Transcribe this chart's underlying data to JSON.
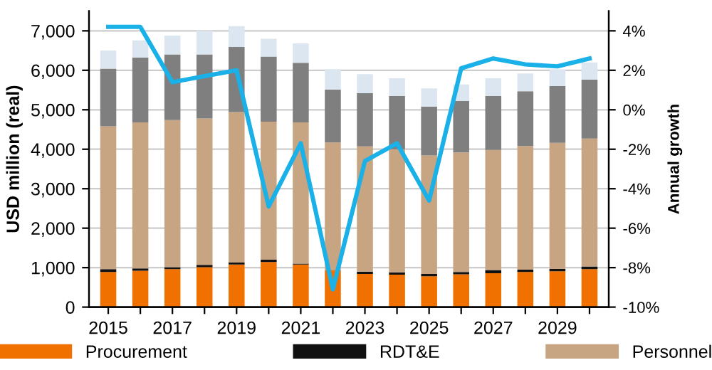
{
  "chart_data": {
    "type": "bar",
    "stacked": true,
    "ylabel": "USD million (real)",
    "y2label": "Annual growth",
    "categories": [
      "2015",
      null,
      "2017",
      null,
      "2019",
      null,
      "2021",
      null,
      "2023",
      null,
      "2025",
      null,
      "2027",
      null,
      "2029",
      null
    ],
    "series": [
      {
        "name": "Procurement",
        "color": "#f07000",
        "values": [
          890,
          920,
          960,
          1010,
          1080,
          1140,
          1080,
          930,
          840,
          820,
          780,
          830,
          860,
          890,
          910,
          960
        ]
      },
      {
        "name": "RDT&E",
        "color": "#111111",
        "values": [
          70,
          60,
          50,
          60,
          50,
          60,
          20,
          null,
          60,
          60,
          60,
          60,
          80,
          60,
          60,
          70
        ]
      },
      {
        "name": "Personnel",
        "color": "#c8a582",
        "values": [
          3620,
          3700,
          3730,
          3710,
          3810,
          3500,
          3580,
          3240,
          3170,
          3120,
          3000,
          3030,
          3040,
          3130,
          3190,
          3240
        ]
      },
      {
        "color": "#7f7f7f",
        "values": [
          1460,
          1640,
          1660,
          1620,
          1650,
          1650,
          1510,
          1340,
          1350,
          1350,
          1240,
          1300,
          1370,
          1390,
          1440,
          1490
        ]
      },
      {
        "color": "#dce6f0",
        "values": [
          460,
          440,
          480,
          600,
          530,
          450,
          490,
          520,
          480,
          450,
          460,
          420,
          450,
          450,
          420,
          440
        ]
      },
      {
        "type": "line",
        "axis": "y2",
        "color": "#1ab0e8",
        "values": [
          4.2,
          4.2,
          1.4,
          1.7,
          2.0,
          -4.9,
          -1.7,
          -9.1,
          -2.6,
          -1.7,
          -4.6,
          2.1,
          2.6,
          2.3,
          2.2,
          2.6
        ]
      }
    ],
    "ylim": [
      0,
      7500
    ],
    "yticks": [
      0,
      {
        "value": 1000,
        "label": "1,000"
      },
      {
        "value": 2000,
        "label": "2,000"
      },
      {
        "value": 3000,
        "label": "3,000"
      },
      {
        "value": 4000,
        "label": "4,000"
      },
      {
        "value": 5000,
        "label": "5,000"
      },
      {
        "value": 6000,
        "label": "6,000"
      },
      {
        "value": 7000,
        "label": "7,000"
      }
    ],
    "y2lim": [
      -10,
      5
    ],
    "y2ticks": [
      {
        "value": -10,
        "label": "-10%"
      },
      {
        "value": -8,
        "label": "-8%"
      },
      {
        "value": -6,
        "label": "-6%"
      },
      {
        "value": -4,
        "label": "-4%"
      },
      {
        "value": -2,
        "label": "-2%"
      },
      {
        "value": 0,
        "label": "0%"
      },
      {
        "value": 2,
        "label": "2%"
      },
      {
        "value": 4,
        "label": "4%"
      }
    ],
    "grid": "y",
    "legend": "bottom",
    "line_style": "solid",
    "marker": "none"
  }
}
